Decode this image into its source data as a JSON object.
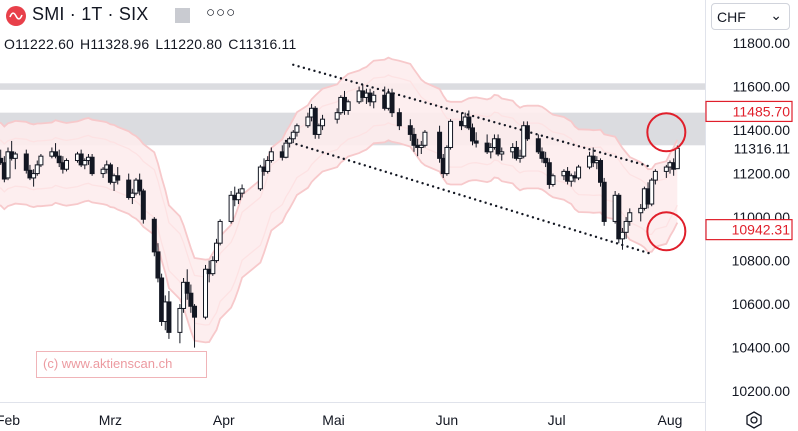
{
  "header": {
    "symbol": "SMI · 1T · SIX",
    "more_icon": "more-dots-icon",
    "currency": "CHF",
    "ohlc": {
      "open": "O11222.60",
      "high": "H11328.96",
      "low": "L11220.80",
      "close": "C11316.11"
    }
  },
  "watermark": "(c) www.aktienscan.ch",
  "colors": {
    "up": "#131722",
    "down": "#131722",
    "band_outer": "#f7c9cb",
    "band_inner": "#fde2e3",
    "band_fill": "#fdeced",
    "zone": "#cfd0d6",
    "circle": "#e01f2b",
    "price_label": "#e01f2b",
    "trend_dots": "#131722"
  },
  "chart_data": {
    "type": "candlestick",
    "ylim": [
      10150,
      11860
    ],
    "y_ticks": [
      "11800.00",
      "11600.00",
      "11400.00",
      "11316.11",
      "11200.00",
      "11000.00",
      "10800.00",
      "10600.00",
      "10400.00",
      "10200.00"
    ],
    "x_ticks": [
      "Feb",
      "Mrz",
      "Apr",
      "Mai",
      "Jun",
      "Jul",
      "Aug"
    ],
    "price_labels": [
      {
        "text": "11485.70",
        "value": 11485.7
      },
      {
        "text": "10942.31",
        "value": 10942.31
      }
    ],
    "last_close": 11316.11,
    "zones": [
      {
        "from": 11585,
        "to": 11615
      },
      {
        "from": 11330,
        "to": 11480
      }
    ],
    "trend_channel": {
      "upper": [
        [
          "Apr 20",
          11700
        ],
        [
          "Jul 27",
          11230
        ]
      ],
      "lower": [
        [
          "Apr 18",
          11350
        ],
        [
          "Jul 27",
          10830
        ]
      ]
    },
    "circles": [
      {
        "label": "upper-target",
        "date": "Jul 31",
        "value": 11390
      },
      {
        "label": "lower-target",
        "date": "Jul 31",
        "value": 10935
      }
    ],
    "candles": [
      {
        "d": "Jan 26",
        "o": 11220,
        "h": 11240,
        "l": 11170,
        "c": 11200
      },
      {
        "d": "Jan 27",
        "o": 11200,
        "h": 11300,
        "l": 11190,
        "c": 11280
      },
      {
        "d": "Jan 30",
        "o": 11270,
        "h": 11310,
        "l": 11240,
        "c": 11250
      },
      {
        "d": "Jan 31",
        "o": 11250,
        "h": 11280,
        "l": 11160,
        "c": 11175
      },
      {
        "d": "Feb 1",
        "o": 11180,
        "h": 11320,
        "l": 11170,
        "c": 11300
      },
      {
        "d": "Feb 2",
        "o": 11300,
        "h": 11350,
        "l": 11260,
        "c": 11270
      },
      {
        "d": "Feb 3",
        "o": 11270,
        "h": 11300,
        "l": 11220,
        "c": 11290
      },
      {
        "d": "Feb 6",
        "o": 11290,
        "h": 11310,
        "l": 11200,
        "c": 11215
      },
      {
        "d": "Feb 7",
        "o": 11215,
        "h": 11240,
        "l": 11170,
        "c": 11180
      },
      {
        "d": "Feb 8",
        "o": 11180,
        "h": 11220,
        "l": 11140,
        "c": 11200
      },
      {
        "d": "Feb 9",
        "o": 11200,
        "h": 11260,
        "l": 11190,
        "c": 11240
      },
      {
        "d": "Feb 10",
        "o": 11240,
        "h": 11290,
        "l": 11230,
        "c": 11280
      },
      {
        "d": "Feb 13",
        "o": 11280,
        "h": 11320,
        "l": 11270,
        "c": 11300
      },
      {
        "d": "Feb 14",
        "o": 11300,
        "h": 11340,
        "l": 11270,
        "c": 11280
      },
      {
        "d": "Feb 15",
        "o": 11280,
        "h": 11310,
        "l": 11230,
        "c": 11250
      },
      {
        "d": "Feb 16",
        "o": 11250,
        "h": 11280,
        "l": 11200,
        "c": 11220
      },
      {
        "d": "Feb 17",
        "o": 11220,
        "h": 11270,
        "l": 11210,
        "c": 11260
      },
      {
        "d": "Feb 20",
        "o": 11260,
        "h": 11300,
        "l": 11250,
        "c": 11290
      },
      {
        "d": "Feb 21",
        "o": 11290,
        "h": 11310,
        "l": 11230,
        "c": 11240
      },
      {
        "d": "Feb 22",
        "o": 11240,
        "h": 11270,
        "l": 11220,
        "c": 11260
      },
      {
        "d": "Feb 23",
        "o": 11260,
        "h": 11290,
        "l": 11240,
        "c": 11275
      },
      {
        "d": "Feb 24",
        "o": 11275,
        "h": 11290,
        "l": 11190,
        "c": 11200
      },
      {
        "d": "Feb 27",
        "o": 11200,
        "h": 11230,
        "l": 11180,
        "c": 11220
      },
      {
        "d": "Feb 28",
        "o": 11220,
        "h": 11260,
        "l": 11200,
        "c": 11240
      },
      {
        "d": "Mar 1",
        "o": 11240,
        "h": 11250,
        "l": 11150,
        "c": 11160
      },
      {
        "d": "Mar 2",
        "o": 11160,
        "h": 11200,
        "l": 11120,
        "c": 11190
      },
      {
        "d": "Mar 3",
        "o": 11190,
        "h": 11230,
        "l": 11150,
        "c": 11170
      },
      {
        "d": "Mar 6",
        "o": 11170,
        "h": 11200,
        "l": 11080,
        "c": 11090
      },
      {
        "d": "Mar 7",
        "o": 11090,
        "h": 11130,
        "l": 11060,
        "c": 11110
      },
      {
        "d": "Mar 8",
        "o": 11110,
        "h": 11180,
        "l": 11100,
        "c": 11170
      },
      {
        "d": "Mar 9",
        "o": 11170,
        "h": 11200,
        "l": 11100,
        "c": 11120
      },
      {
        "d": "Mar 10",
        "o": 11120,
        "h": 11130,
        "l": 10970,
        "c": 10990
      },
      {
        "d": "Mar 13",
        "o": 10990,
        "h": 11000,
        "l": 10820,
        "c": 10840
      },
      {
        "d": "Mar 14",
        "o": 10840,
        "h": 10880,
        "l": 10700,
        "c": 10720
      },
      {
        "d": "Mar 15",
        "o": 10720,
        "h": 10740,
        "l": 10500,
        "c": 10520
      },
      {
        "d": "Mar 16",
        "o": 10520,
        "h": 10640,
        "l": 10480,
        "c": 10610
      },
      {
        "d": "Mar 17",
        "o": 10610,
        "h": 10660,
        "l": 10440,
        "c": 10470
      },
      {
        "d": "Mar 20",
        "o": 10470,
        "h": 10600,
        "l": 10420,
        "c": 10580
      },
      {
        "d": "Mar 21",
        "o": 10580,
        "h": 10720,
        "l": 10560,
        "c": 10700
      },
      {
        "d": "Mar 22",
        "o": 10700,
        "h": 10760,
        "l": 10620,
        "c": 10650
      },
      {
        "d": "Mar 23",
        "o": 10650,
        "h": 10690,
        "l": 10560,
        "c": 10590
      },
      {
        "d": "Mar 24",
        "o": 10590,
        "h": 10600,
        "l": 10400,
        "c": 10540
      },
      {
        "d": "Mar 27",
        "o": 10540,
        "h": 10780,
        "l": 10530,
        "c": 10760
      },
      {
        "d": "Mar 28",
        "o": 10760,
        "h": 10800,
        "l": 10700,
        "c": 10740
      },
      {
        "d": "Mar 29",
        "o": 10740,
        "h": 10820,
        "l": 10730,
        "c": 10800
      },
      {
        "d": "Mar 30",
        "o": 10800,
        "h": 10900,
        "l": 10790,
        "c": 10880
      },
      {
        "d": "Mar 31",
        "o": 10880,
        "h": 10990,
        "l": 10870,
        "c": 10980
      },
      {
        "d": "Apr 3",
        "o": 10980,
        "h": 11120,
        "l": 10970,
        "c": 11100
      },
      {
        "d": "Apr 4",
        "o": 11100,
        "h": 11140,
        "l": 11050,
        "c": 11080
      },
      {
        "d": "Apr 5",
        "o": 11080,
        "h": 11130,
        "l": 11060,
        "c": 11110
      },
      {
        "d": "Apr 6",
        "o": 11110,
        "h": 11150,
        "l": 11090,
        "c": 11130
      },
      {
        "d": "Apr 11",
        "o": 11130,
        "h": 11240,
        "l": 11120,
        "c": 11230
      },
      {
        "d": "Apr 12",
        "o": 11230,
        "h": 11270,
        "l": 11190,
        "c": 11210
      },
      {
        "d": "Apr 13",
        "o": 11210,
        "h": 11280,
        "l": 11200,
        "c": 11260
      },
      {
        "d": "Apr 14",
        "o": 11260,
        "h": 11320,
        "l": 11250,
        "c": 11300
      },
      {
        "d": "Apr 17",
        "o": 11300,
        "h": 11330,
        "l": 11260,
        "c": 11275
      },
      {
        "d": "Apr 18",
        "o": 11275,
        "h": 11350,
        "l": 11270,
        "c": 11340
      },
      {
        "d": "Apr 19",
        "o": 11340,
        "h": 11370,
        "l": 11320,
        "c": 11360
      },
      {
        "d": "Apr 20",
        "o": 11360,
        "h": 11400,
        "l": 11340,
        "c": 11390
      },
      {
        "d": "Apr 21",
        "o": 11390,
        "h": 11430,
        "l": 11370,
        "c": 11420
      },
      {
        "d": "Apr 24",
        "o": 11420,
        "h": 11480,
        "l": 11410,
        "c": 11460
      },
      {
        "d": "Apr 25",
        "o": 11460,
        "h": 11520,
        "l": 11440,
        "c": 11500
      },
      {
        "d": "Apr 26",
        "o": 11500,
        "h": 11510,
        "l": 11360,
        "c": 11380
      },
      {
        "d": "Apr 27",
        "o": 11380,
        "h": 11430,
        "l": 11360,
        "c": 11420
      },
      {
        "d": "Apr 28",
        "o": 11420,
        "h": 11470,
        "l": 11400,
        "c": 11450
      },
      {
        "d": "May 2",
        "o": 11450,
        "h": 11500,
        "l": 11430,
        "c": 11480
      },
      {
        "d": "May 3",
        "o": 11480,
        "h": 11560,
        "l": 11470,
        "c": 11550
      },
      {
        "d": "May 4",
        "o": 11550,
        "h": 11580,
        "l": 11470,
        "c": 11490
      },
      {
        "d": "May 5",
        "o": 11490,
        "h": 11540,
        "l": 11470,
        "c": 11530
      },
      {
        "d": "May 8",
        "o": 11530,
        "h": 11600,
        "l": 11520,
        "c": 11580
      },
      {
        "d": "May 9",
        "o": 11580,
        "h": 11610,
        "l": 11530,
        "c": 11550
      },
      {
        "d": "May 10",
        "o": 11550,
        "h": 11590,
        "l": 11520,
        "c": 11570
      },
      {
        "d": "May 11",
        "o": 11570,
        "h": 11590,
        "l": 11510,
        "c": 11530
      },
      {
        "d": "May 12",
        "o": 11530,
        "h": 11580,
        "l": 11500,
        "c": 11560
      },
      {
        "d": "May 15",
        "o": 11560,
        "h": 11600,
        "l": 11490,
        "c": 11500
      },
      {
        "d": "May 16",
        "o": 11500,
        "h": 11590,
        "l": 11490,
        "c": 11570
      },
      {
        "d": "May 17",
        "o": 11570,
        "h": 11590,
        "l": 11460,
        "c": 11480
      },
      {
        "d": "May 19",
        "o": 11480,
        "h": 11500,
        "l": 11400,
        "c": 11420
      },
      {
        "d": "May 22",
        "o": 11420,
        "h": 11450,
        "l": 11350,
        "c": 11380
      },
      {
        "d": "May 23",
        "o": 11380,
        "h": 11410,
        "l": 11300,
        "c": 11330
      },
      {
        "d": "May 24",
        "o": 11330,
        "h": 11360,
        "l": 11280,
        "c": 11320
      },
      {
        "d": "May 25",
        "o": 11320,
        "h": 11350,
        "l": 11290,
        "c": 11330
      },
      {
        "d": "May 26",
        "o": 11330,
        "h": 11400,
        "l": 11320,
        "c": 11390
      },
      {
        "d": "May 30",
        "o": 11390,
        "h": 11420,
        "l": 11250,
        "c": 11270
      },
      {
        "d": "May 31",
        "o": 11270,
        "h": 11290,
        "l": 11180,
        "c": 11200
      },
      {
        "d": "Jun 1",
        "o": 11200,
        "h": 11330,
        "l": 11190,
        "c": 11320
      },
      {
        "d": "Jun 2",
        "o": 11320,
        "h": 11450,
        "l": 11310,
        "c": 11440
      },
      {
        "d": "Jun 5",
        "o": 11440,
        "h": 11480,
        "l": 11400,
        "c": 11420
      },
      {
        "d": "Jun 6",
        "o": 11420,
        "h": 11480,
        "l": 11410,
        "c": 11460
      },
      {
        "d": "Jun 7",
        "o": 11460,
        "h": 11490,
        "l": 11400,
        "c": 11410
      },
      {
        "d": "Jun 8",
        "o": 11410,
        "h": 11430,
        "l": 11330,
        "c": 11350
      },
      {
        "d": "Jun 9",
        "o": 11350,
        "h": 11390,
        "l": 11320,
        "c": 11340
      },
      {
        "d": "Jun 12",
        "o": 11340,
        "h": 11380,
        "l": 11290,
        "c": 11300
      },
      {
        "d": "Jun 13",
        "o": 11300,
        "h": 11340,
        "l": 11270,
        "c": 11320
      },
      {
        "d": "Jun 14",
        "o": 11320,
        "h": 11380,
        "l": 11310,
        "c": 11360
      },
      {
        "d": "Jun 15",
        "o": 11360,
        "h": 11380,
        "l": 11280,
        "c": 11290
      },
      {
        "d": "Jun 16",
        "o": 11290,
        "h": 11320,
        "l": 11260,
        "c": 11300
      },
      {
        "d": "Jun 19",
        "o": 11300,
        "h": 11340,
        "l": 11270,
        "c": 11320
      },
      {
        "d": "Jun 20",
        "o": 11320,
        "h": 11350,
        "l": 11260,
        "c": 11270
      },
      {
        "d": "Jun 21",
        "o": 11270,
        "h": 11310,
        "l": 11250,
        "c": 11280
      },
      {
        "d": "Jun 22",
        "o": 11280,
        "h": 11440,
        "l": 11270,
        "c": 11420
      },
      {
        "d": "Jun 23",
        "o": 11420,
        "h": 11440,
        "l": 11350,
        "c": 11360
      },
      {
        "d": "Jun 26",
        "o": 11360,
        "h": 11380,
        "l": 11290,
        "c": 11300
      },
      {
        "d": "Jun 27",
        "o": 11300,
        "h": 11320,
        "l": 11250,
        "c": 11270
      },
      {
        "d": "Jun 28",
        "o": 11270,
        "h": 11300,
        "l": 11230,
        "c": 11250
      },
      {
        "d": "Jun 29",
        "o": 11250,
        "h": 11270,
        "l": 11130,
        "c": 11150
      },
      {
        "d": "Jun 30",
        "o": 11150,
        "h": 11200,
        "l": 11140,
        "c": 11190
      },
      {
        "d": "Jul 3",
        "o": 11190,
        "h": 11220,
        "l": 11170,
        "c": 11210
      },
      {
        "d": "Jul 4",
        "o": 11210,
        "h": 11230,
        "l": 11150,
        "c": 11165
      },
      {
        "d": "Jul 5",
        "o": 11165,
        "h": 11200,
        "l": 11140,
        "c": 11190
      },
      {
        "d": "Jul 6",
        "o": 11190,
        "h": 11210,
        "l": 11160,
        "c": 11180
      },
      {
        "d": "Jul 7",
        "o": 11180,
        "h": 11240,
        "l": 11170,
        "c": 11230
      },
      {
        "d": "Jul 10",
        "o": 11230,
        "h": 11300,
        "l": 11220,
        "c": 11280
      },
      {
        "d": "Jul 11",
        "o": 11280,
        "h": 11320,
        "l": 11230,
        "c": 11250
      },
      {
        "d": "Jul 12",
        "o": 11250,
        "h": 11280,
        "l": 11220,
        "c": 11260
      },
      {
        "d": "Jul 13",
        "o": 11260,
        "h": 11270,
        "l": 11140,
        "c": 11160
      },
      {
        "d": "Jul 14",
        "o": 11160,
        "h": 11180,
        "l": 10960,
        "c": 10980
      },
      {
        "d": "Jul 17",
        "o": 10980,
        "h": 11120,
        "l": 10970,
        "c": 11100
      },
      {
        "d": "Jul 18",
        "o": 11100,
        "h": 11110,
        "l": 10880,
        "c": 10900
      },
      {
        "d": "Jul 19",
        "o": 10900,
        "h": 10950,
        "l": 10850,
        "c": 10930
      },
      {
        "d": "Jul 20",
        "o": 10930,
        "h": 11000,
        "l": 10900,
        "c": 10980
      },
      {
        "d": "Jul 21",
        "o": 10980,
        "h": 11040,
        "l": 10960,
        "c": 11020
      },
      {
        "d": "Jul 24",
        "o": 11020,
        "h": 11060,
        "l": 10980,
        "c": 11040
      },
      {
        "d": "Jul 25",
        "o": 11040,
        "h": 11140,
        "l": 11030,
        "c": 11130
      },
      {
        "d": "Jul 26",
        "o": 11130,
        "h": 11160,
        "l": 11040,
        "c": 11060
      },
      {
        "d": "Jul 27",
        "o": 11060,
        "h": 11180,
        "l": 11050,
        "c": 11170
      },
      {
        "d": "Jul 28",
        "o": 11170,
        "h": 11220,
        "l": 11150,
        "c": 11210
      },
      {
        "d": "Jul 31",
        "o": 11210,
        "h": 11240,
        "l": 11180,
        "c": 11230
      },
      {
        "d": "Aug 1",
        "o": 11230,
        "h": 11260,
        "l": 11200,
        "c": 11250
      },
      {
        "d": "Aug 2",
        "o": 11250,
        "h": 11270,
        "l": 11190,
        "c": 11220
      },
      {
        "d": "Aug 3",
        "o": 11222.6,
        "h": 11328.96,
        "l": 11220.8,
        "c": 11316.11
      }
    ]
  }
}
